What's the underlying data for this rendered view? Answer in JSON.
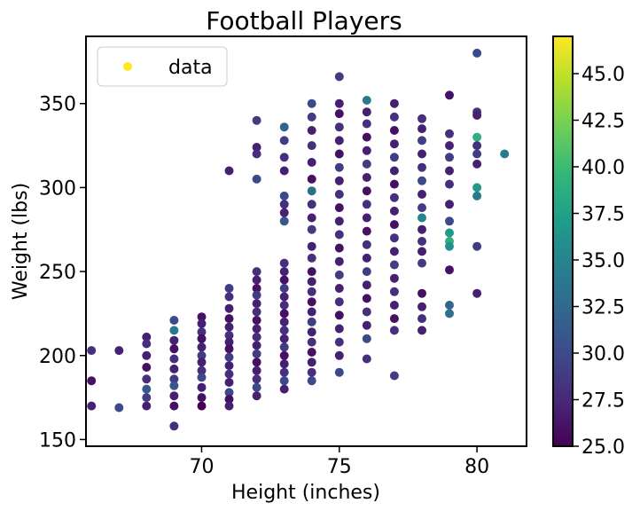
{
  "chart_data": {
    "type": "scatter",
    "title": "Football Players",
    "xlabel": "Height (inches)",
    "ylabel": "Weight (lbs)",
    "xlim": [
      65.8,
      81.8
    ],
    "ylim": [
      146,
      390
    ],
    "xticks": [
      70,
      75,
      80
    ],
    "yticks": [
      150,
      200,
      250,
      300,
      350
    ],
    "grid": false,
    "legend": {
      "position": "upper-left",
      "entries": [
        "data"
      ],
      "marker_color": "#fde725"
    },
    "colorbar": {
      "label": "",
      "range": [
        25.0,
        47.0
      ],
      "ticks": [
        "25.0",
        "27.5",
        "30.0",
        "32.5",
        "35.0",
        "37.5",
        "40.0",
        "42.5",
        "45.0"
      ],
      "colormap": "viridis",
      "colormap_stops": [
        "#440154",
        "#482878",
        "#3e4989",
        "#31688e",
        "#26828e",
        "#1f9e89",
        "#35b779",
        "#6ece58",
        "#b5de2b",
        "#fde725"
      ]
    },
    "points": [
      {
        "x": 66,
        "y": 203,
        "c": 28
      },
      {
        "x": 66,
        "y": 185,
        "c": 26
      },
      {
        "x": 66,
        "y": 170,
        "c": 27
      },
      {
        "x": 67,
        "y": 203,
        "c": 27
      },
      {
        "x": 67,
        "y": 169,
        "c": 30
      },
      {
        "x": 68,
        "y": 211,
        "c": 27
      },
      {
        "x": 68,
        "y": 207,
        "c": 28
      },
      {
        "x": 68,
        "y": 200,
        "c": 27
      },
      {
        "x": 68,
        "y": 193,
        "c": 26
      },
      {
        "x": 68,
        "y": 186,
        "c": 28
      },
      {
        "x": 68,
        "y": 180,
        "c": 31
      },
      {
        "x": 68,
        "y": 175,
        "c": 29
      },
      {
        "x": 68,
        "y": 170,
        "c": 27
      },
      {
        "x": 69,
        "y": 221,
        "c": 30
      },
      {
        "x": 69,
        "y": 215,
        "c": 34
      },
      {
        "x": 69,
        "y": 209,
        "c": 27
      },
      {
        "x": 69,
        "y": 204,
        "c": 26
      },
      {
        "x": 69,
        "y": 198,
        "c": 28
      },
      {
        "x": 69,
        "y": 192,
        "c": 27
      },
      {
        "x": 69,
        "y": 186,
        "c": 29
      },
      {
        "x": 69,
        "y": 182,
        "c": 31
      },
      {
        "x": 69,
        "y": 176,
        "c": 27
      },
      {
        "x": 69,
        "y": 170,
        "c": 26
      },
      {
        "x": 69,
        "y": 158,
        "c": 28
      },
      {
        "x": 70,
        "y": 223,
        "c": 26
      },
      {
        "x": 70,
        "y": 219,
        "c": 27
      },
      {
        "x": 70,
        "y": 214,
        "c": 28
      },
      {
        "x": 70,
        "y": 210,
        "c": 26
      },
      {
        "x": 70,
        "y": 205,
        "c": 27
      },
      {
        "x": 70,
        "y": 200,
        "c": 29
      },
      {
        "x": 70,
        "y": 196,
        "c": 27
      },
      {
        "x": 70,
        "y": 191,
        "c": 28
      },
      {
        "x": 70,
        "y": 187,
        "c": 30
      },
      {
        "x": 70,
        "y": 181,
        "c": 27
      },
      {
        "x": 70,
        "y": 175,
        "c": 26
      },
      {
        "x": 70,
        "y": 170,
        "c": 25
      },
      {
        "x": 71,
        "y": 310,
        "c": 27
      },
      {
        "x": 71,
        "y": 240,
        "c": 29
      },
      {
        "x": 71,
        "y": 235,
        "c": 28
      },
      {
        "x": 71,
        "y": 228,
        "c": 27
      },
      {
        "x": 71,
        "y": 222,
        "c": 26
      },
      {
        "x": 71,
        "y": 217,
        "c": 27
      },
      {
        "x": 71,
        "y": 212,
        "c": 28
      },
      {
        "x": 71,
        "y": 208,
        "c": 27
      },
      {
        "x": 71,
        "y": 204,
        "c": 26
      },
      {
        "x": 71,
        "y": 199,
        "c": 29
      },
      {
        "x": 71,
        "y": 194,
        "c": 27
      },
      {
        "x": 71,
        "y": 189,
        "c": 28
      },
      {
        "x": 71,
        "y": 184,
        "c": 27
      },
      {
        "x": 71,
        "y": 178,
        "c": 30
      },
      {
        "x": 71,
        "y": 174,
        "c": 26
      },
      {
        "x": 71,
        "y": 170,
        "c": 27
      },
      {
        "x": 72,
        "y": 340,
        "c": 29
      },
      {
        "x": 72,
        "y": 324,
        "c": 27
      },
      {
        "x": 72,
        "y": 320,
        "c": 28
      },
      {
        "x": 72,
        "y": 305,
        "c": 30
      },
      {
        "x": 72,
        "y": 250,
        "c": 28
      },
      {
        "x": 72,
        "y": 245,
        "c": 27
      },
      {
        "x": 72,
        "y": 240,
        "c": 26
      },
      {
        "x": 72,
        "y": 236,
        "c": 29
      },
      {
        "x": 72,
        "y": 231,
        "c": 27
      },
      {
        "x": 72,
        "y": 226,
        "c": 28
      },
      {
        "x": 72,
        "y": 221,
        "c": 26
      },
      {
        "x": 72,
        "y": 216,
        "c": 27
      },
      {
        "x": 72,
        "y": 211,
        "c": 28
      },
      {
        "x": 72,
        "y": 206,
        "c": 27
      },
      {
        "x": 72,
        "y": 201,
        "c": 29
      },
      {
        "x": 72,
        "y": 196,
        "c": 26
      },
      {
        "x": 72,
        "y": 191,
        "c": 27
      },
      {
        "x": 72,
        "y": 186,
        "c": 28
      },
      {
        "x": 72,
        "y": 181,
        "c": 30
      },
      {
        "x": 72,
        "y": 176,
        "c": 27
      },
      {
        "x": 73,
        "y": 336,
        "c": 32
      },
      {
        "x": 73,
        "y": 328,
        "c": 29
      },
      {
        "x": 73,
        "y": 318,
        "c": 28
      },
      {
        "x": 73,
        "y": 310,
        "c": 27
      },
      {
        "x": 73,
        "y": 295,
        "c": 30
      },
      {
        "x": 73,
        "y": 290,
        "c": 28
      },
      {
        "x": 73,
        "y": 285,
        "c": 27
      },
      {
        "x": 73,
        "y": 280,
        "c": 31
      },
      {
        "x": 73,
        "y": 255,
        "c": 28
      },
      {
        "x": 73,
        "y": 250,
        "c": 27
      },
      {
        "x": 73,
        "y": 245,
        "c": 26
      },
      {
        "x": 73,
        "y": 240,
        "c": 29
      },
      {
        "x": 73,
        "y": 235,
        "c": 27
      },
      {
        "x": 73,
        "y": 230,
        "c": 28
      },
      {
        "x": 73,
        "y": 225,
        "c": 26
      },
      {
        "x": 73,
        "y": 220,
        "c": 27
      },
      {
        "x": 73,
        "y": 215,
        "c": 28
      },
      {
        "x": 73,
        "y": 210,
        "c": 27
      },
      {
        "x": 73,
        "y": 205,
        "c": 29
      },
      {
        "x": 73,
        "y": 200,
        "c": 26
      },
      {
        "x": 73,
        "y": 195,
        "c": 27
      },
      {
        "x": 73,
        "y": 190,
        "c": 28
      },
      {
        "x": 73,
        "y": 185,
        "c": 30
      },
      {
        "x": 73,
        "y": 180,
        "c": 27
      },
      {
        "x": 74,
        "y": 350,
        "c": 30
      },
      {
        "x": 74,
        "y": 342,
        "c": 29
      },
      {
        "x": 74,
        "y": 334,
        "c": 27
      },
      {
        "x": 74,
        "y": 325,
        "c": 28
      },
      {
        "x": 74,
        "y": 315,
        "c": 27
      },
      {
        "x": 74,
        "y": 305,
        "c": 26
      },
      {
        "x": 74,
        "y": 298,
        "c": 33
      },
      {
        "x": 74,
        "y": 290,
        "c": 28
      },
      {
        "x": 74,
        "y": 282,
        "c": 27
      },
      {
        "x": 74,
        "y": 275,
        "c": 29
      },
      {
        "x": 74,
        "y": 265,
        "c": 27
      },
      {
        "x": 74,
        "y": 258,
        "c": 28
      },
      {
        "x": 74,
        "y": 250,
        "c": 26
      },
      {
        "x": 74,
        "y": 244,
        "c": 27
      },
      {
        "x": 74,
        "y": 238,
        "c": 28
      },
      {
        "x": 74,
        "y": 232,
        "c": 26
      },
      {
        "x": 74,
        "y": 226,
        "c": 27
      },
      {
        "x": 74,
        "y": 220,
        "c": 29
      },
      {
        "x": 74,
        "y": 214,
        "c": 27
      },
      {
        "x": 74,
        "y": 208,
        "c": 28
      },
      {
        "x": 74,
        "y": 202,
        "c": 26
      },
      {
        "x": 74,
        "y": 196,
        "c": 27
      },
      {
        "x": 74,
        "y": 190,
        "c": 28
      },
      {
        "x": 74,
        "y": 185,
        "c": 30
      },
      {
        "x": 75,
        "y": 366,
        "c": 29
      },
      {
        "x": 75,
        "y": 350,
        "c": 27
      },
      {
        "x": 75,
        "y": 344,
        "c": 26
      },
      {
        "x": 75,
        "y": 336,
        "c": 28
      },
      {
        "x": 75,
        "y": 328,
        "c": 27
      },
      {
        "x": 75,
        "y": 320,
        "c": 26
      },
      {
        "x": 75,
        "y": 312,
        "c": 29
      },
      {
        "x": 75,
        "y": 304,
        "c": 27
      },
      {
        "x": 75,
        "y": 296,
        "c": 28
      },
      {
        "x": 75,
        "y": 288,
        "c": 26
      },
      {
        "x": 75,
        "y": 280,
        "c": 27
      },
      {
        "x": 75,
        "y": 272,
        "c": 28
      },
      {
        "x": 75,
        "y": 264,
        "c": 26
      },
      {
        "x": 75,
        "y": 256,
        "c": 27
      },
      {
        "x": 75,
        "y": 248,
        "c": 29
      },
      {
        "x": 75,
        "y": 240,
        "c": 27
      },
      {
        "x": 75,
        "y": 232,
        "c": 28
      },
      {
        "x": 75,
        "y": 224,
        "c": 26
      },
      {
        "x": 75,
        "y": 216,
        "c": 27
      },
      {
        "x": 75,
        "y": 208,
        "c": 28
      },
      {
        "x": 75,
        "y": 200,
        "c": 27
      },
      {
        "x": 75,
        "y": 190,
        "c": 30
      },
      {
        "x": 76,
        "y": 352,
        "c": 34
      },
      {
        "x": 76,
        "y": 345,
        "c": 27
      },
      {
        "x": 76,
        "y": 338,
        "c": 28
      },
      {
        "x": 76,
        "y": 330,
        "c": 26
      },
      {
        "x": 76,
        "y": 322,
        "c": 27
      },
      {
        "x": 76,
        "y": 314,
        "c": 29
      },
      {
        "x": 76,
        "y": 306,
        "c": 27
      },
      {
        "x": 76,
        "y": 298,
        "c": 26
      },
      {
        "x": 76,
        "y": 290,
        "c": 28
      },
      {
        "x": 76,
        "y": 282,
        "c": 27
      },
      {
        "x": 76,
        "y": 274,
        "c": 26
      },
      {
        "x": 76,
        "y": 266,
        "c": 28
      },
      {
        "x": 76,
        "y": 258,
        "c": 27
      },
      {
        "x": 76,
        "y": 250,
        "c": 29
      },
      {
        "x": 76,
        "y": 242,
        "c": 27
      },
      {
        "x": 76,
        "y": 234,
        "c": 26
      },
      {
        "x": 76,
        "y": 226,
        "c": 28
      },
      {
        "x": 76,
        "y": 218,
        "c": 27
      },
      {
        "x": 76,
        "y": 210,
        "c": 30
      },
      {
        "x": 76,
        "y": 198,
        "c": 28
      },
      {
        "x": 77,
        "y": 350,
        "c": 27
      },
      {
        "x": 77,
        "y": 342,
        "c": 28
      },
      {
        "x": 77,
        "y": 334,
        "c": 26
      },
      {
        "x": 77,
        "y": 326,
        "c": 27
      },
      {
        "x": 77,
        "y": 318,
        "c": 29
      },
      {
        "x": 77,
        "y": 310,
        "c": 27
      },
      {
        "x": 77,
        "y": 302,
        "c": 26
      },
      {
        "x": 77,
        "y": 294,
        "c": 28
      },
      {
        "x": 77,
        "y": 286,
        "c": 27
      },
      {
        "x": 77,
        "y": 278,
        "c": 26
      },
      {
        "x": 77,
        "y": 270,
        "c": 28
      },
      {
        "x": 77,
        "y": 262,
        "c": 27
      },
      {
        "x": 77,
        "y": 254,
        "c": 29
      },
      {
        "x": 77,
        "y": 246,
        "c": 27
      },
      {
        "x": 77,
        "y": 238,
        "c": 28
      },
      {
        "x": 77,
        "y": 230,
        "c": 27
      },
      {
        "x": 77,
        "y": 222,
        "c": 26
      },
      {
        "x": 77,
        "y": 215,
        "c": 28
      },
      {
        "x": 77,
        "y": 188,
        "c": 29
      },
      {
        "x": 78,
        "y": 341,
        "c": 28
      },
      {
        "x": 78,
        "y": 335,
        "c": 27
      },
      {
        "x": 78,
        "y": 328,
        "c": 29
      },
      {
        "x": 78,
        "y": 320,
        "c": 27
      },
      {
        "x": 78,
        "y": 312,
        "c": 28
      },
      {
        "x": 78,
        "y": 304,
        "c": 30
      },
      {
        "x": 78,
        "y": 296,
        "c": 27
      },
      {
        "x": 78,
        "y": 288,
        "c": 29
      },
      {
        "x": 78,
        "y": 282,
        "c": 35
      },
      {
        "x": 78,
        "y": 275,
        "c": 27
      },
      {
        "x": 78,
        "y": 268,
        "c": 28
      },
      {
        "x": 78,
        "y": 262,
        "c": 27
      },
      {
        "x": 78,
        "y": 255,
        "c": 29
      },
      {
        "x": 78,
        "y": 237,
        "c": 26
      },
      {
        "x": 78,
        "y": 229,
        "c": 27
      },
      {
        "x": 78,
        "y": 222,
        "c": 28
      },
      {
        "x": 78,
        "y": 215,
        "c": 27
      },
      {
        "x": 79,
        "y": 355,
        "c": 26
      },
      {
        "x": 79,
        "y": 332,
        "c": 28
      },
      {
        "x": 79,
        "y": 325,
        "c": 27
      },
      {
        "x": 79,
        "y": 318,
        "c": 29
      },
      {
        "x": 79,
        "y": 310,
        "c": 27
      },
      {
        "x": 79,
        "y": 302,
        "c": 28
      },
      {
        "x": 79,
        "y": 290,
        "c": 27
      },
      {
        "x": 79,
        "y": 280,
        "c": 30
      },
      {
        "x": 79,
        "y": 273,
        "c": 37
      },
      {
        "x": 79,
        "y": 268,
        "c": 39
      },
      {
        "x": 79,
        "y": 265,
        "c": 36
      },
      {
        "x": 79,
        "y": 251,
        "c": 26
      },
      {
        "x": 79,
        "y": 230,
        "c": 32
      },
      {
        "x": 79,
        "y": 225,
        "c": 33
      },
      {
        "x": 80,
        "y": 380,
        "c": 30
      },
      {
        "x": 80,
        "y": 345,
        "c": 28
      },
      {
        "x": 80,
        "y": 343,
        "c": 27
      },
      {
        "x": 80,
        "y": 330,
        "c": 39
      },
      {
        "x": 80,
        "y": 325,
        "c": 28
      },
      {
        "x": 80,
        "y": 320,
        "c": 29
      },
      {
        "x": 80,
        "y": 314,
        "c": 27
      },
      {
        "x": 80,
        "y": 300,
        "c": 37
      },
      {
        "x": 80,
        "y": 295,
        "c": 34
      },
      {
        "x": 80,
        "y": 265,
        "c": 29
      },
      {
        "x": 80,
        "y": 237,
        "c": 27
      },
      {
        "x": 81,
        "y": 320,
        "c": 34
      }
    ]
  }
}
